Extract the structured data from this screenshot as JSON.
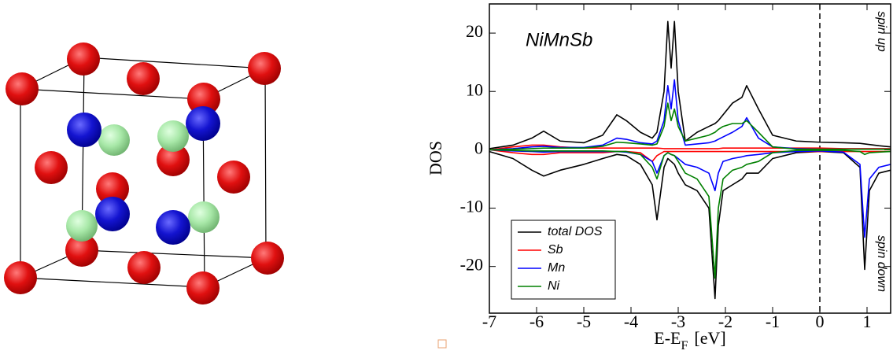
{
  "chart_data": {
    "type": "line",
    "title": "NiMnSb",
    "xlabel": {
      "text": "E-E",
      "subscript": "F",
      "unit": "[eV]"
    },
    "ylabel": "DOS",
    "annotations": [
      "spin up",
      "spin down"
    ],
    "reference_line": {
      "x": 0,
      "style": "dashed"
    },
    "xlim": [
      -7,
      1.5
    ],
    "ylim": [
      -28,
      25
    ],
    "xticks": [
      -7,
      -6,
      -5,
      -4,
      -3,
      -2,
      -1,
      0,
      1
    ],
    "yticks": [
      -20,
      -10,
      0,
      10,
      20
    ],
    "x": [
      -7,
      -6.5,
      -6.1,
      -5.85,
      -5.5,
      -5.0,
      -4.6,
      -4.3,
      -4.1,
      -3.8,
      -3.55,
      -3.45,
      -3.3,
      -3.22,
      -3.15,
      -3.08,
      -3.0,
      -2.85,
      -2.6,
      -2.35,
      -2.22,
      -2.15,
      -2.05,
      -1.85,
      -1.65,
      -1.55,
      -1.3,
      -1.0,
      -0.5,
      0,
      0.5,
      0.85,
      0.95,
      1.05,
      1.25,
      1.5
    ],
    "series": [
      {
        "name": "total DOS",
        "color": "#000000",
        "values": [
          0.2,
          0.8,
          2,
          3.2,
          1.5,
          1.2,
          2.5,
          6,
          5,
          3,
          2,
          3,
          10,
          22,
          14,
          22,
          10,
          1.5,
          3,
          4,
          4.5,
          5,
          6,
          8,
          9,
          11,
          7,
          2.5,
          1.5,
          1.3,
          1.2,
          1.1,
          1.0,
          0.9,
          0.7,
          0.5
        ],
        "values_down": [
          -0.3,
          -1.5,
          -3.5,
          -4.5,
          -3.5,
          -2.5,
          -1.5,
          -0.8,
          -1,
          -2.5,
          -6,
          -12,
          -3,
          -1.5,
          -2,
          -2.5,
          -4,
          -6,
          -7,
          -10,
          -25.5,
          -13,
          -7,
          -6,
          -5,
          -4,
          -4,
          -1.5,
          -0.5,
          -0.3,
          -0.5,
          -3,
          -20.5,
          -7,
          -4,
          -3.5
        ]
      },
      {
        "name": "Sb",
        "color": "#ff0000",
        "values": [
          0,
          0.5,
          0.8,
          0.8,
          0.5,
          0.3,
          0.3,
          0.3,
          0.3,
          0.3,
          0.3,
          0.3,
          0.2,
          0.2,
          0.2,
          0.2,
          0.2,
          0.2,
          0.2,
          0.2,
          0.2,
          0.2,
          0.3,
          0.3,
          0.3,
          0.3,
          0.3,
          0.3,
          0.3,
          0.3,
          0.2,
          0.2,
          0.2,
          0.2,
          0.2,
          0.2
        ],
        "values_down": [
          0,
          -0.5,
          -0.8,
          -0.8,
          -0.5,
          -0.5,
          -0.5,
          -0.3,
          -0.3,
          -0.5,
          -2,
          -1,
          -0.3,
          -0.3,
          -0.3,
          -0.3,
          -0.3,
          -0.3,
          -0.3,
          -0.3,
          -0.3,
          -0.3,
          -0.3,
          -0.3,
          -0.3,
          -0.3,
          -0.3,
          -0.3,
          -0.3,
          -0.3,
          -0.3,
          -0.3,
          -0.3,
          -0.3,
          -0.3,
          -0.3
        ]
      },
      {
        "name": "Mn",
        "color": "#0000ff",
        "values": [
          0,
          0.2,
          0.5,
          0.6,
          0.4,
          0.4,
          0.8,
          2,
          1.8,
          1.2,
          1,
          1.5,
          5,
          11,
          7,
          12,
          5,
          0.8,
          1,
          1.2,
          1.5,
          1.8,
          2.2,
          3,
          4,
          5.5,
          2,
          0.5,
          0.2,
          0.1,
          0.1,
          0.1,
          0.1,
          0.1,
          0.1,
          0.1
        ],
        "values_down": [
          0,
          -0.2,
          -0.3,
          -0.4,
          -0.3,
          -0.3,
          -0.3,
          -0.3,
          -0.4,
          -0.8,
          -2,
          -4,
          -1,
          -0.5,
          -0.8,
          -1,
          -1.5,
          -2.5,
          -3,
          -4,
          -7,
          -4,
          -2,
          -1.5,
          -1.2,
          -1,
          -0.8,
          -0.5,
          -0.3,
          -0.2,
          -0.4,
          -2.5,
          -15,
          -5,
          -3,
          -2.5
        ]
      },
      {
        "name": "Ni",
        "color": "#008000",
        "values": [
          0,
          0.1,
          0.2,
          0.3,
          0.3,
          0.3,
          0.6,
          1.3,
          1.2,
          1,
          0.8,
          1,
          4,
          8,
          5,
          7,
          4,
          1.5,
          2,
          2.5,
          3,
          3.5,
          4,
          4.5,
          4.5,
          5,
          3,
          0.5,
          0.1,
          0.1,
          0.1,
          0.1,
          0.1,
          0.1,
          0.1,
          0.1
        ],
        "values_down": [
          0,
          -0.1,
          -0.2,
          -0.2,
          -0.2,
          -0.2,
          -0.2,
          -0.3,
          -0.3,
          -0.8,
          -3,
          -5,
          -1,
          -0.5,
          -0.8,
          -1,
          -2,
          -4,
          -5,
          -8,
          -22,
          -10,
          -5,
          -3.5,
          -3,
          -2.5,
          -2,
          -0.5,
          -0.1,
          -0.1,
          -0.1,
          -0.3,
          -0.8,
          -0.5,
          -0.4,
          -0.3
        ]
      }
    ],
    "legend": "lower left"
  }
}
